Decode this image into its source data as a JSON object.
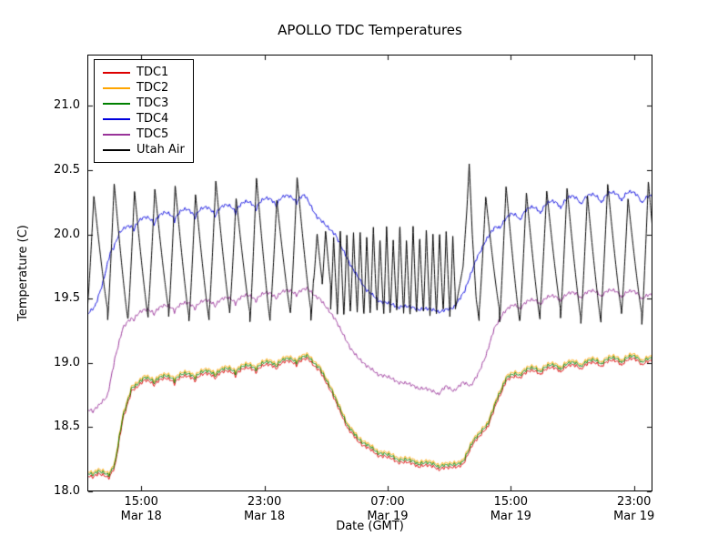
{
  "chart_data": {
    "type": "line",
    "title": "APOLLO TDC Temperatures",
    "xlabel": "Date (GMT)",
    "ylabel": "Temperature (C)",
    "x_unit": "hours since Mar 18 00:00 GMT",
    "xlim": [
      11.5,
      48.2
    ],
    "ylim": [
      18.0,
      21.4
    ],
    "grid": false,
    "legend_position": "upper left",
    "y_ticks": [
      {
        "v": 18.0,
        "label": "18.0"
      },
      {
        "v": 18.5,
        "label": "18.5"
      },
      {
        "v": 19.0,
        "label": "19.0"
      },
      {
        "v": 19.5,
        "label": "19.5"
      },
      {
        "v": 20.0,
        "label": "20.0"
      },
      {
        "v": 20.5,
        "label": "20.5"
      },
      {
        "v": 21.0,
        "label": "21.0"
      }
    ],
    "x_ticks": [
      {
        "v": 15,
        "time": "15:00",
        "date": "Mar 18"
      },
      {
        "v": 23,
        "time": "23:00",
        "date": "Mar 18"
      },
      {
        "v": 31,
        "time": "07:00",
        "date": "Mar 19"
      },
      {
        "v": 39,
        "time": "15:00",
        "date": "Mar 19"
      },
      {
        "v": 47,
        "time": "23:00",
        "date": "Mar 19"
      }
    ],
    "series": [
      {
        "name": "TDC1",
        "color": "#dd0000",
        "ripple_period": 1.32,
        "points": [
          [
            11.5,
            18.11,
            0.012
          ],
          [
            12.2,
            18.13,
            0.012
          ],
          [
            12.9,
            18.1,
            0.01
          ],
          [
            13.3,
            18.2,
            0
          ],
          [
            13.8,
            18.56,
            0
          ],
          [
            14.4,
            18.79,
            0
          ],
          [
            15.2,
            18.84,
            0.025
          ],
          [
            17,
            18.86,
            0.025
          ],
          [
            19,
            18.89,
            0.025
          ],
          [
            21,
            18.92,
            0.025
          ],
          [
            23,
            18.96,
            0.025
          ],
          [
            25,
            19.0,
            0.025
          ],
          [
            25.8,
            19.02,
            0.015
          ],
          [
            26.6,
            18.94,
            0
          ],
          [
            27.4,
            18.76,
            0
          ],
          [
            28.4,
            18.49,
            0
          ],
          [
            29.4,
            18.35,
            0.01
          ],
          [
            30.6,
            18.27,
            0.012
          ],
          [
            32,
            18.22,
            0.012
          ],
          [
            33.5,
            18.19,
            0.015
          ],
          [
            35,
            18.17,
            0.015
          ],
          [
            35.9,
            18.21,
            0
          ],
          [
            36.5,
            18.36,
            0
          ],
          [
            37.0,
            18.44,
            0.01
          ],
          [
            37.5,
            18.49,
            0.01
          ],
          [
            38.1,
            18.7,
            0
          ],
          [
            38.7,
            18.85,
            0.015
          ],
          [
            39.6,
            18.9,
            0.025
          ],
          [
            41,
            18.93,
            0.025
          ],
          [
            43,
            18.96,
            0.025
          ],
          [
            45,
            18.99,
            0.025
          ],
          [
            47,
            19.01,
            0.025
          ],
          [
            48.2,
            18.99,
            0.025
          ]
        ]
      },
      {
        "name": "TDC2",
        "color": "#ffa500",
        "offset_from": "TDC1",
        "offset": 0.035
      },
      {
        "name": "TDC3",
        "color": "#008000",
        "offset_from": "TDC1",
        "offset": 0.02
      },
      {
        "name": "TDC4",
        "color": "#0000dd",
        "ripple_period": 1.32,
        "points": [
          [
            11.5,
            19.38,
            0
          ],
          [
            12.0,
            19.44,
            0
          ],
          [
            12.5,
            19.62,
            0
          ],
          [
            13.0,
            19.86,
            0.01
          ],
          [
            13.6,
            20.0,
            0.02
          ],
          [
            14.5,
            20.07,
            0.04
          ],
          [
            16,
            20.12,
            0.04
          ],
          [
            18,
            20.16,
            0.04
          ],
          [
            20,
            20.18,
            0.04
          ],
          [
            22,
            20.22,
            0.04
          ],
          [
            24,
            20.26,
            0.04
          ],
          [
            25.6,
            20.28,
            0.03
          ],
          [
            26.3,
            20.16,
            0.01
          ],
          [
            27.0,
            20.06,
            0.01
          ],
          [
            27.6,
            20.0,
            0
          ],
          [
            28.6,
            19.76,
            0
          ],
          [
            29.6,
            19.57,
            0
          ],
          [
            30.6,
            19.47,
            0.01
          ],
          [
            31.6,
            19.44,
            0.01
          ],
          [
            33.0,
            19.42,
            0.01
          ],
          [
            34.5,
            19.4,
            0.01
          ],
          [
            35.3,
            19.43,
            0
          ],
          [
            36.0,
            19.56,
            0
          ],
          [
            36.8,
            19.82,
            0
          ],
          [
            37.3,
            19.93,
            0.01
          ],
          [
            38.0,
            20.05,
            0.02
          ],
          [
            39.0,
            20.12,
            0.04
          ],
          [
            41,
            20.2,
            0.04
          ],
          [
            43,
            20.26,
            0.04
          ],
          [
            45,
            20.28,
            0.04
          ],
          [
            46.5,
            20.3,
            0.04
          ],
          [
            48.2,
            20.26,
            0.04
          ]
        ]
      },
      {
        "name": "TDC5",
        "color": "#993399",
        "ripple_period": 1.32,
        "points": [
          [
            11.5,
            18.62,
            0.02
          ],
          [
            12.3,
            18.66,
            0.02
          ],
          [
            12.8,
            18.74,
            0
          ],
          [
            13.3,
            19.04,
            0
          ],
          [
            13.8,
            19.27,
            0
          ],
          [
            14.5,
            19.36,
            0.03
          ],
          [
            16,
            19.41,
            0.03
          ],
          [
            18,
            19.44,
            0.03
          ],
          [
            20,
            19.47,
            0.03
          ],
          [
            22,
            19.5,
            0.03
          ],
          [
            24,
            19.53,
            0.03
          ],
          [
            25.8,
            19.56,
            0.02
          ],
          [
            26.6,
            19.5,
            0
          ],
          [
            27.6,
            19.34,
            0
          ],
          [
            28.6,
            19.11,
            0
          ],
          [
            29.6,
            18.97,
            0.01
          ],
          [
            30.6,
            18.9,
            0.01
          ],
          [
            32,
            18.84,
            0.01
          ],
          [
            33.5,
            18.79,
            0.01
          ],
          [
            34.3,
            18.76,
            0.01
          ],
          [
            34.8,
            18.82,
            0
          ],
          [
            35.3,
            18.78,
            0
          ],
          [
            35.9,
            18.85,
            0
          ],
          [
            36.4,
            18.82,
            0
          ],
          [
            36.9,
            18.92,
            0
          ],
          [
            37.4,
            19.06,
            0
          ],
          [
            37.9,
            19.26,
            0
          ],
          [
            38.4,
            19.37,
            0.02
          ],
          [
            39.2,
            19.43,
            0.03
          ],
          [
            41,
            19.48,
            0.03
          ],
          [
            43,
            19.52,
            0.03
          ],
          [
            45,
            19.54,
            0.03
          ],
          [
            47,
            19.53,
            0.03
          ],
          [
            48.2,
            19.5,
            0.03
          ]
        ]
      },
      {
        "name": "Utah Air",
        "color": "#000000",
        "parts": [
          {
            "type": "saw",
            "from": 11.5,
            "to": 26.2,
            "period": 1.32,
            "min": 19.32,
            "max": 20.45,
            "rise": 0.32,
            "peak_var": 0.18,
            "min_var": 0.1
          },
          {
            "type": "saw",
            "from": 26.2,
            "to": 27.3,
            "period": 0.55,
            "min": 19.6,
            "max": 20.05,
            "rise": 0.4,
            "peak_var": 0.05,
            "min_var": 0.05
          },
          {
            "type": "saw",
            "from": 27.3,
            "to": 35.4,
            "period": 0.43,
            "min": 19.36,
            "max": 20.08,
            "rise": 0.45,
            "peak_var": 0.12,
            "min_var": 0.06
          },
          {
            "type": "line",
            "points": [
              [
                35.4,
                19.42
              ],
              [
                35.9,
                19.75
              ],
              [
                36.15,
                20.2
              ],
              [
                36.3,
                20.55
              ],
              [
                36.5,
                20.0
              ],
              [
                36.75,
                19.5
              ],
              [
                36.95,
                19.32
              ]
            ]
          },
          {
            "type": "saw",
            "from": 36.95,
            "to": 48.2,
            "period": 1.32,
            "min": 19.3,
            "max": 20.42,
            "rise": 0.32,
            "peak_var": 0.15,
            "min_var": 0.12
          }
        ]
      }
    ]
  }
}
